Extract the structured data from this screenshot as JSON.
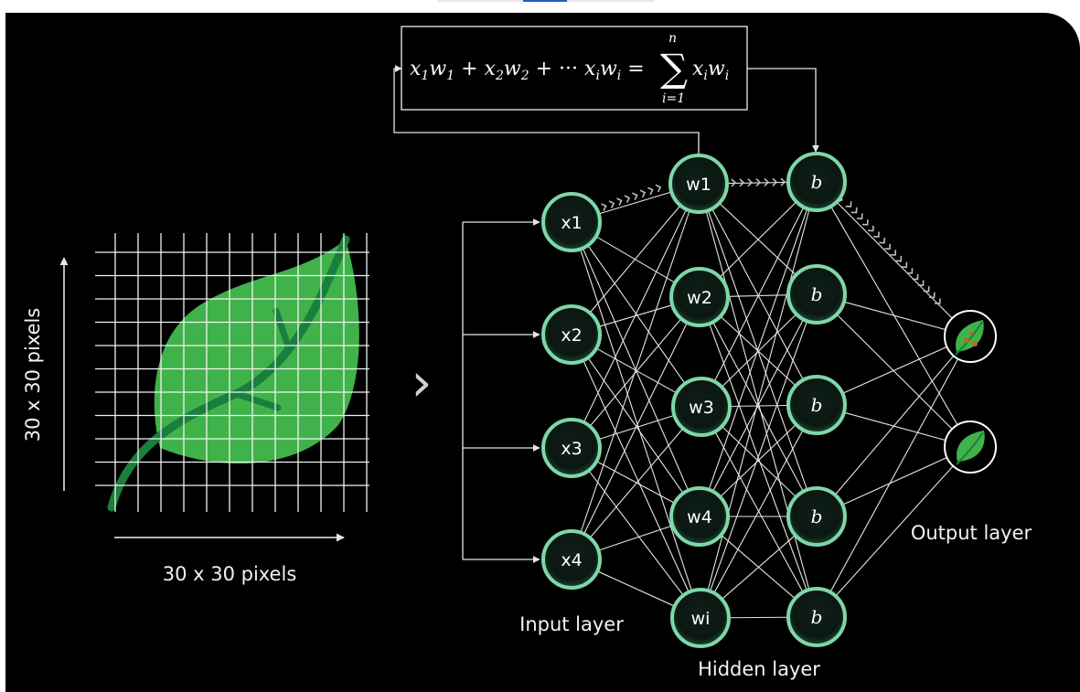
{
  "formula": {
    "lhs": [
      "x",
      "1",
      "w",
      "1",
      " + ",
      "x",
      "2",
      "w",
      "2",
      " + ··· ",
      "x",
      "i",
      "w",
      "i",
      " = "
    ],
    "sum_upper": "n",
    "sum_lower": "i=1",
    "sum_term": [
      "x",
      "i",
      "w",
      "i"
    ]
  },
  "image_block": {
    "vertical_label": "30 x 30 pixels",
    "horizontal_label": "30 x 30 pixels"
  },
  "arrow_glyph": "›",
  "input_layer": {
    "label": "Input layer",
    "nodes": [
      "x1",
      "x2",
      "x3",
      "x4"
    ]
  },
  "hidden_layer": {
    "label": "Hidden layer",
    "weight_nodes": [
      "w1",
      "w2",
      "w3",
      "w4",
      "wi"
    ],
    "bias_nodes": [
      "b",
      "b",
      "b",
      "b",
      "b"
    ]
  },
  "output_layer": {
    "label": "Output layer",
    "nodes": [
      "diseased-leaf-icon",
      "healthy-leaf-icon"
    ]
  },
  "colors": {
    "background": "#000000",
    "leaf_green": "#3fb24a",
    "leaf_vein": "#1a7f3c",
    "node_ring": "#7fd6a8",
    "node_fill": "#0c1a14",
    "line": "#e6e6e6",
    "disease_spot": "#c8641e"
  }
}
